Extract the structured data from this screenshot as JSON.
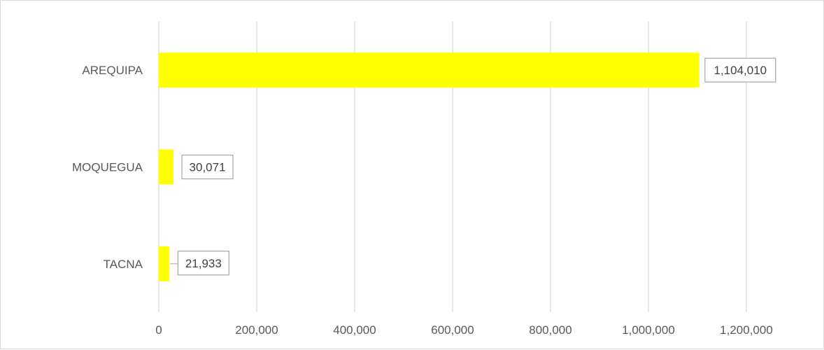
{
  "chart_data": {
    "type": "bar",
    "orientation": "horizontal",
    "categories": [
      "AREQUIPA",
      "MOQUEGUA",
      "TACNA"
    ],
    "values": [
      1104010,
      30071,
      21933
    ],
    "data_labels": [
      "1,104,010",
      "30,071",
      "21,933"
    ],
    "xlim": [
      0,
      1200000
    ],
    "x_ticks": [
      0,
      200000,
      400000,
      600000,
      800000,
      1000000,
      1200000
    ],
    "x_tick_labels": [
      "0",
      "200,000",
      "400,000",
      "600,000",
      "800,000",
      "1,000,000",
      "1,200,000"
    ],
    "title": "",
    "xlabel": "",
    "ylabel": "",
    "grid": true,
    "legend": "none",
    "colors": {
      "bar": "#ffff00",
      "grid": "#d9d9d9",
      "text": "#595959",
      "label_border": "#a6a6a6"
    }
  }
}
